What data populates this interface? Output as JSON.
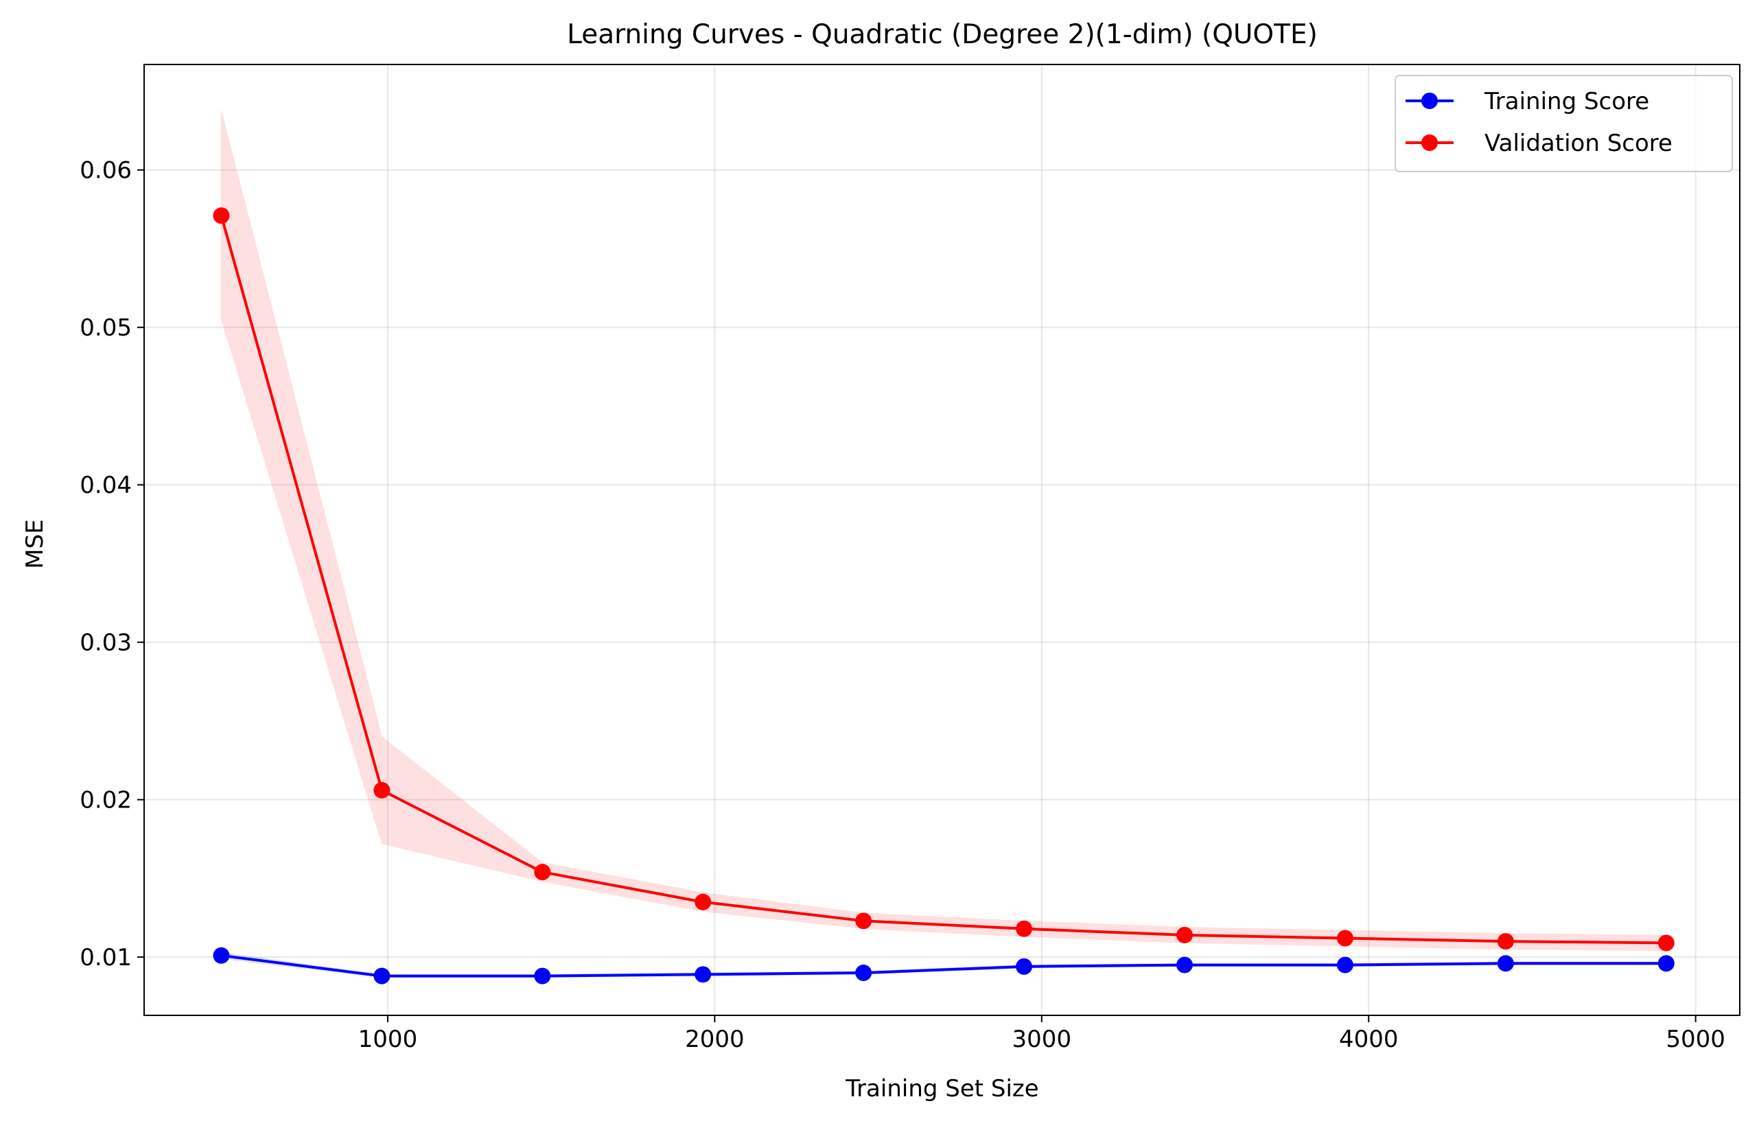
{
  "chart_data": {
    "type": "line",
    "title": "Learning Curves - Quadratic (Degree 2)(1-dim) (QUOTE)",
    "xlabel": "Training Set Size",
    "ylabel": "MSE",
    "xlim": [
      255,
      5135
    ],
    "ylim": [
      0.0063,
      0.0667
    ],
    "xticks": [
      1000,
      2000,
      3000,
      4000,
      5000
    ],
    "xtick_labels": [
      "1000",
      "2000",
      "3000",
      "4000",
      "5000"
    ],
    "yticks": [
      0.01,
      0.02,
      0.03,
      0.04,
      0.05,
      0.06
    ],
    "ytick_labels": [
      "0.01",
      "0.02",
      "0.03",
      "0.04",
      "0.05",
      "0.06"
    ],
    "grid": true,
    "legend_position": "top-right",
    "x": [
      491,
      982,
      1473,
      1964,
      2455,
      2946,
      3437,
      3928,
      4419,
      4910
    ],
    "series": [
      {
        "name": "Training Score",
        "color": "#0000ff",
        "marker": "circle",
        "values": [
          0.0101,
          0.0088,
          0.0088,
          0.0089,
          0.009,
          0.0094,
          0.0095,
          0.0095,
          0.0096,
          0.0096
        ],
        "band_lower": [
          0.0099,
          0.0087,
          0.0087,
          0.0088,
          0.0089,
          0.0093,
          0.0094,
          0.0094,
          0.0095,
          0.0095
        ],
        "band_upper": [
          0.0103,
          0.0089,
          0.0089,
          0.009,
          0.0091,
          0.0095,
          0.0096,
          0.0096,
          0.0097,
          0.0097
        ]
      },
      {
        "name": "Validation Score",
        "color": "#ff0000",
        "marker": "circle",
        "values": [
          0.0571,
          0.0206,
          0.0154,
          0.0135,
          0.0123,
          0.0118,
          0.0114,
          0.0112,
          0.011,
          0.0109
        ],
        "band_lower": [
          0.0505,
          0.0172,
          0.0148,
          0.0129,
          0.0118,
          0.0113,
          0.0109,
          0.0107,
          0.0105,
          0.0104
        ],
        "band_upper": [
          0.0638,
          0.024,
          0.016,
          0.0141,
          0.0128,
          0.0123,
          0.0119,
          0.0117,
          0.0115,
          0.0114
        ]
      }
    ],
    "band_color": "#ff0000"
  }
}
